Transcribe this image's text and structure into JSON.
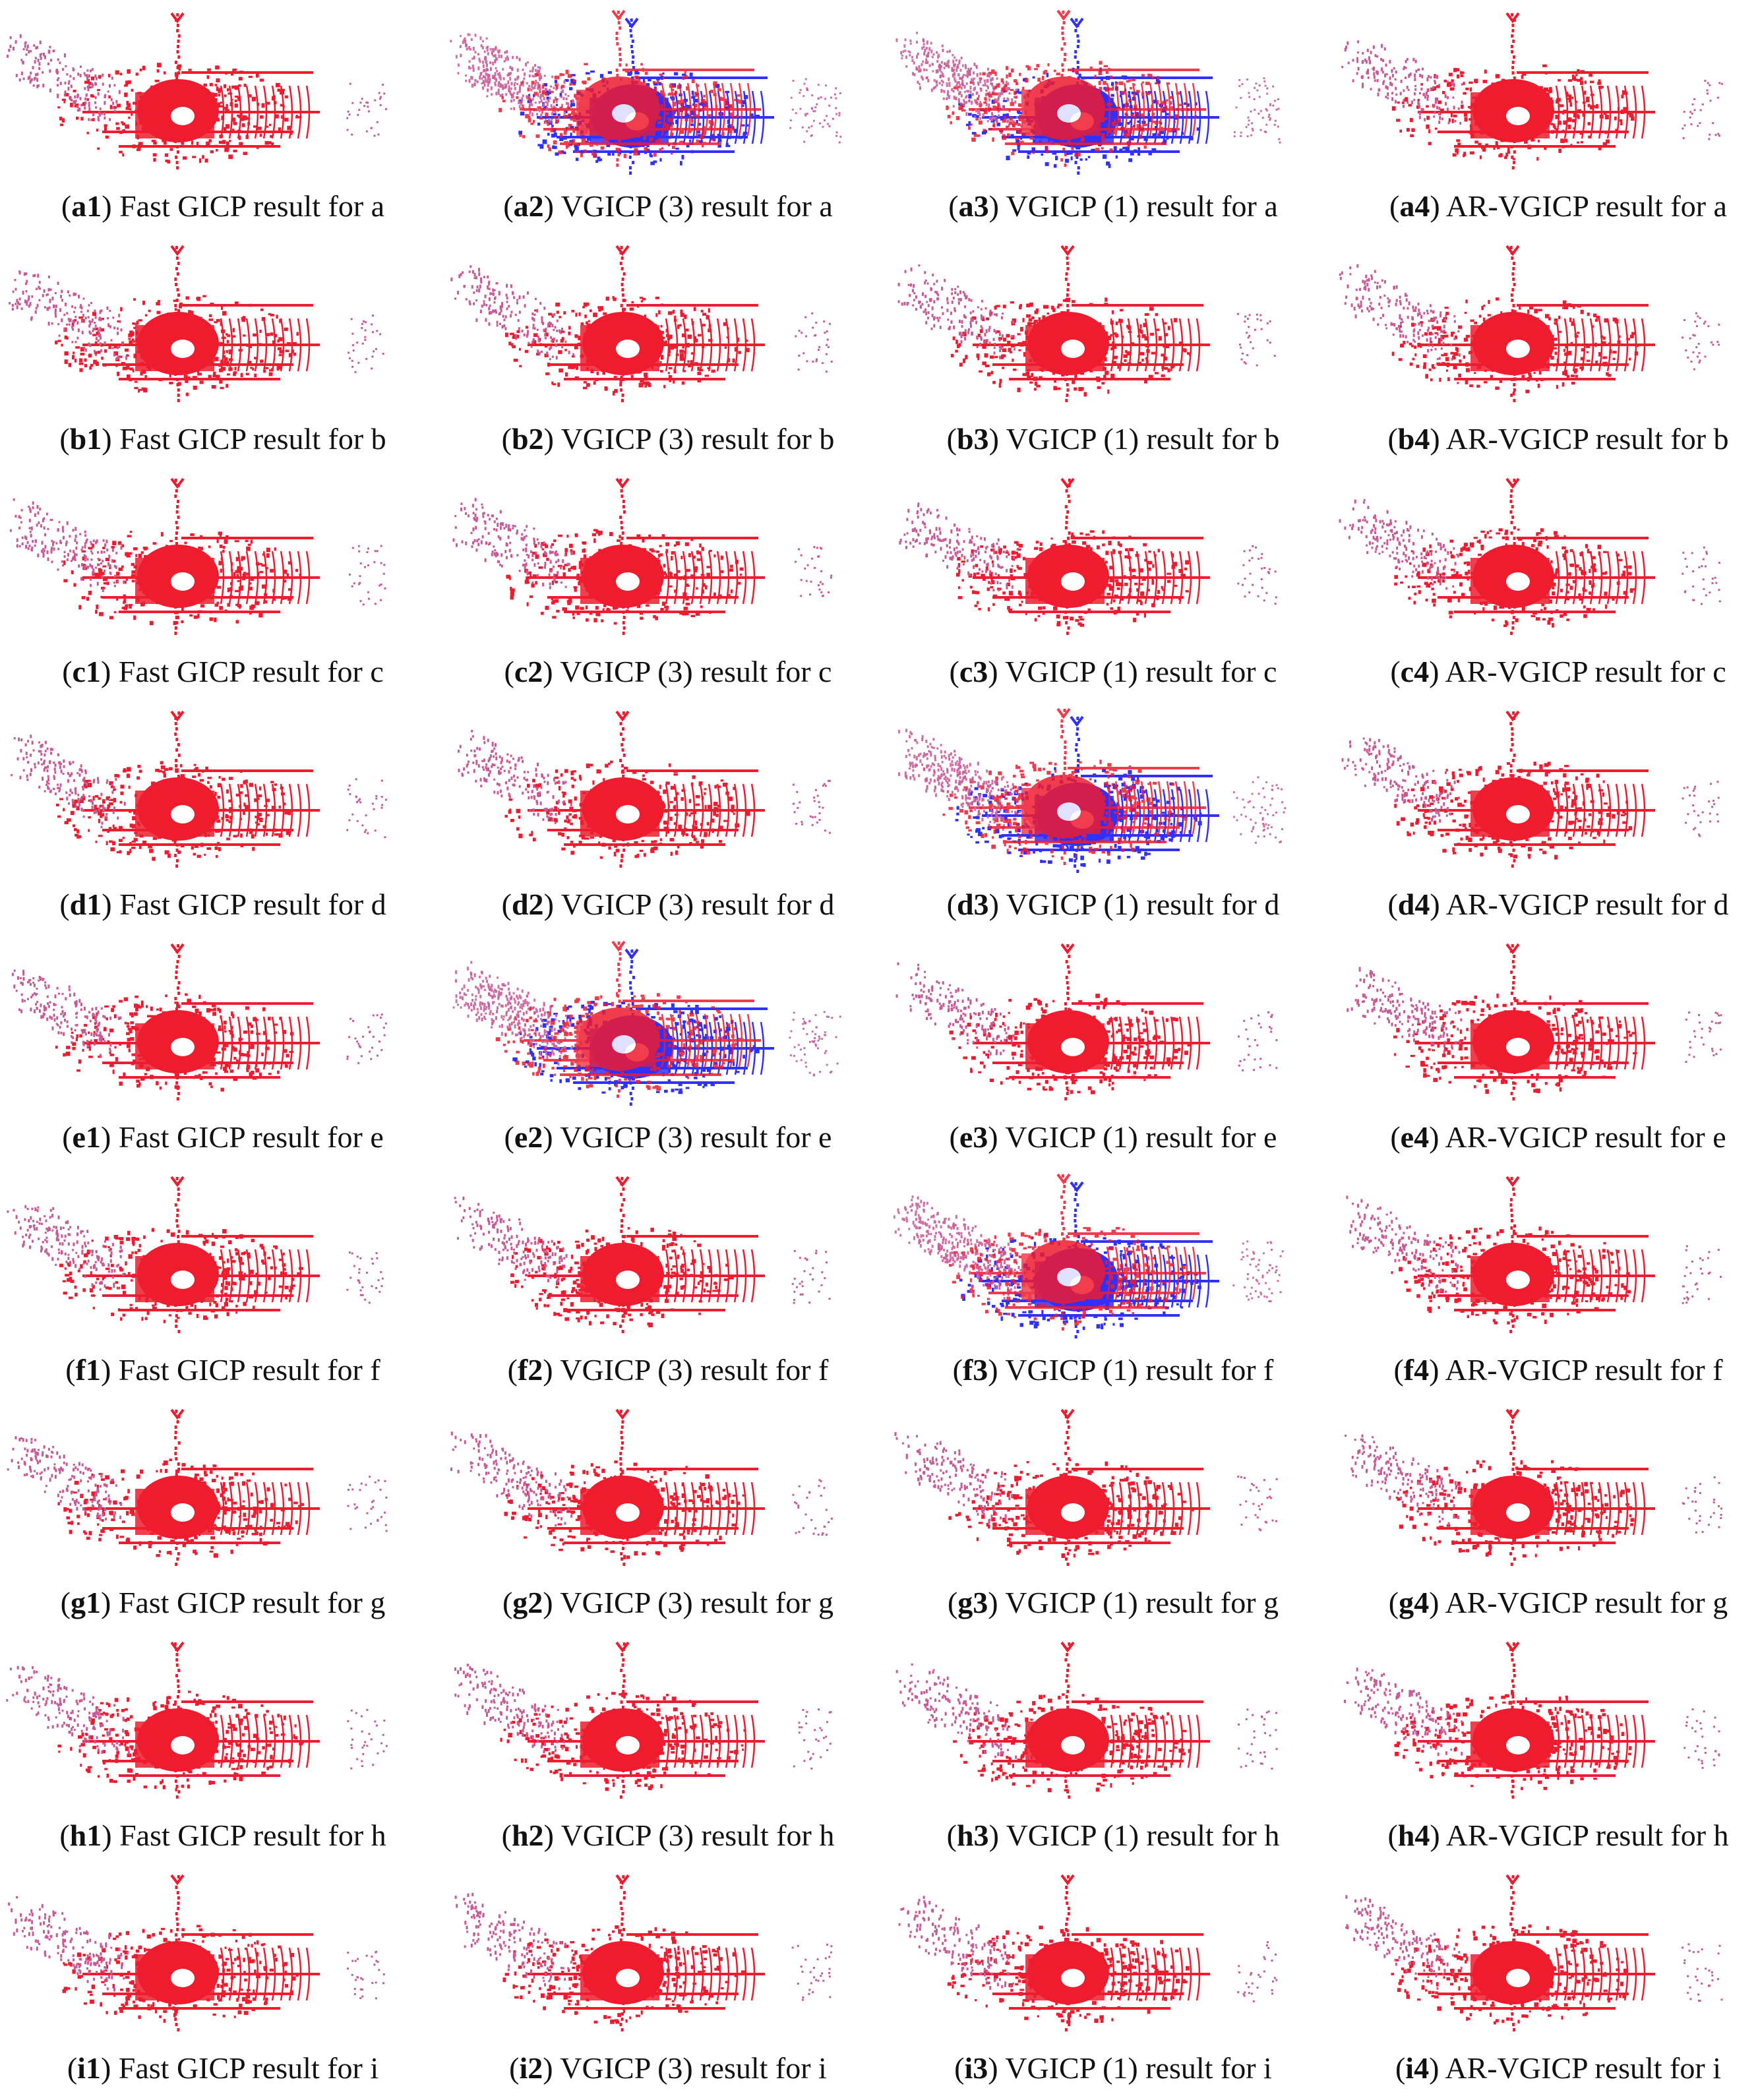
{
  "rows": [
    {
      "captions": [
        {
          "id": "a1",
          "text": "Fast GICP result for a",
          "blue": "none"
        },
        {
          "id": "a2",
          "text": "VGICP (3) result for a",
          "blue": "heavy"
        },
        {
          "id": "a3",
          "text": "VGICP (1) result for a",
          "blue": "heavy"
        },
        {
          "id": "a4",
          "text": "AR-VGICP result for a",
          "blue": "none"
        }
      ]
    },
    {
      "captions": [
        {
          "id": "b1",
          "text": "Fast GICP result for b",
          "blue": "none"
        },
        {
          "id": "b2",
          "text": "VGICP (3) result for b",
          "blue": "none"
        },
        {
          "id": "b3",
          "text": "VGICP (1) result for b",
          "blue": "none"
        },
        {
          "id": "b4",
          "text": "AR-VGICP result for b",
          "blue": "none"
        }
      ]
    },
    {
      "captions": [
        {
          "id": "c1",
          "text": "Fast GICP result for c",
          "blue": "none"
        },
        {
          "id": "c2",
          "text": "VGICP (3) result for c",
          "blue": "none"
        },
        {
          "id": "c3",
          "text": "VGICP (1) result for c",
          "blue": "none"
        },
        {
          "id": "c4",
          "text": "AR-VGICP result for c",
          "blue": "none"
        }
      ]
    },
    {
      "captions": [
        {
          "id": "d1",
          "text": "Fast GICP result for d",
          "blue": "none"
        },
        {
          "id": "d2",
          "text": "VGICP (3) result for d",
          "blue": "none"
        },
        {
          "id": "d3",
          "text": "VGICP (1) result for d",
          "blue": "heavy"
        },
        {
          "id": "d4",
          "text": "AR-VGICP result for d",
          "blue": "none"
        }
      ]
    },
    {
      "captions": [
        {
          "id": "e1",
          "text": "Fast GICP result for e",
          "blue": "none"
        },
        {
          "id": "e2",
          "text": "VGICP (3) result for e",
          "blue": "heavy"
        },
        {
          "id": "e3",
          "text": "VGICP (1) result for e",
          "blue": "none"
        },
        {
          "id": "e4",
          "text": "AR-VGICP result for e",
          "blue": "none"
        }
      ]
    },
    {
      "captions": [
        {
          "id": "f1",
          "text": "Fast GICP result for f",
          "blue": "none"
        },
        {
          "id": "f2",
          "text": "VGICP (3) result for f",
          "blue": "none"
        },
        {
          "id": "f3",
          "text": "VGICP (1) result for f",
          "blue": "heavy"
        },
        {
          "id": "f4",
          "text": "AR-VGICP result for f",
          "blue": "none"
        }
      ]
    },
    {
      "captions": [
        {
          "id": "g1",
          "text": "Fast GICP result for g",
          "blue": "none"
        },
        {
          "id": "g2",
          "text": "VGICP (3) result for g",
          "blue": "none"
        },
        {
          "id": "g3",
          "text": "VGICP (1) result for g",
          "blue": "none"
        },
        {
          "id": "g4",
          "text": "AR-VGICP result for g",
          "blue": "none"
        }
      ]
    },
    {
      "captions": [
        {
          "id": "h1",
          "text": "Fast GICP result for h",
          "blue": "none"
        },
        {
          "id": "h2",
          "text": "VGICP (3) result for h",
          "blue": "none"
        },
        {
          "id": "h3",
          "text": "VGICP (1) result for h",
          "blue": "none"
        },
        {
          "id": "h4",
          "text": "AR-VGICP result for h",
          "blue": "none"
        }
      ]
    },
    {
      "captions": [
        {
          "id": "i1",
          "text": "Fast GICP result for i",
          "blue": "none"
        },
        {
          "id": "i2",
          "text": "VGICP (3) result for i",
          "blue": "none"
        },
        {
          "id": "i3",
          "text": "VGICP (1) result for i",
          "blue": "none"
        },
        {
          "id": "i4",
          "text": "AR-VGICP result for i",
          "blue": "none"
        }
      ]
    }
  ],
  "colors": {
    "target_cloud": "#ee1c2e",
    "source_cloud": "#1a1aff",
    "faded_cloud": "#c85a96",
    "caption_text": "#111111"
  }
}
